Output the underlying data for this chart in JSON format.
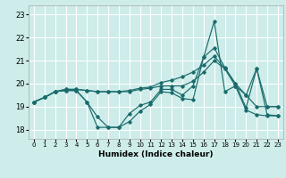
{
  "xlabel": "Humidex (Indice chaleur)",
  "xlim": [
    -0.5,
    23.5
  ],
  "ylim": [
    17.6,
    23.4
  ],
  "yticks": [
    18,
    19,
    20,
    21,
    22,
    23
  ],
  "xticks": [
    0,
    1,
    2,
    3,
    4,
    5,
    6,
    7,
    8,
    9,
    10,
    11,
    12,
    13,
    14,
    15,
    16,
    17,
    18,
    19,
    20,
    21,
    22,
    23
  ],
  "bg_color": "#cdecea",
  "grid_color": "#ffffff",
  "line_color": "#1a6b6b",
  "lines": [
    {
      "x": [
        0,
        1,
        2,
        3,
        4,
        5,
        6,
        7,
        8,
        9,
        10,
        11,
        12,
        13,
        14,
        15,
        16,
        17,
        18,
        19,
        20,
        21,
        22,
        23
      ],
      "y": [
        19.2,
        19.4,
        19.65,
        19.7,
        19.7,
        19.2,
        18.1,
        18.1,
        18.1,
        18.35,
        18.8,
        19.1,
        19.65,
        19.6,
        19.35,
        19.3,
        21.15,
        22.7,
        19.65,
        19.9,
        18.85,
        18.65,
        18.6,
        18.6
      ]
    },
    {
      "x": [
        0,
        1,
        2,
        3,
        4,
        5,
        6,
        7,
        8,
        9,
        10,
        11,
        12,
        13,
        14,
        15,
        16,
        17,
        18,
        19,
        20,
        21,
        22,
        23
      ],
      "y": [
        19.2,
        19.4,
        19.65,
        19.7,
        19.7,
        19.2,
        18.55,
        18.1,
        18.1,
        18.7,
        19.05,
        19.2,
        19.75,
        19.75,
        19.5,
        19.9,
        21.15,
        21.55,
        20.7,
        20.0,
        18.95,
        20.65,
        18.65,
        18.6
      ]
    },
    {
      "x": [
        0,
        1,
        2,
        3,
        4,
        5,
        6,
        7,
        8,
        9,
        10,
        11,
        12,
        13,
        14,
        15,
        16,
        17,
        18,
        19,
        20,
        21,
        22,
        23
      ],
      "y": [
        19.2,
        19.4,
        19.65,
        19.75,
        19.75,
        19.7,
        19.65,
        19.65,
        19.65,
        19.65,
        19.75,
        19.8,
        19.9,
        19.9,
        19.9,
        20.1,
        20.5,
        21.0,
        20.65,
        19.9,
        19.5,
        20.65,
        19.0,
        19.0
      ]
    },
    {
      "x": [
        0,
        1,
        2,
        3,
        4,
        5,
        6,
        7,
        8,
        9,
        10,
        11,
        12,
        13,
        14,
        15,
        16,
        17,
        18,
        19,
        20,
        21,
        22,
        23
      ],
      "y": [
        19.2,
        19.4,
        19.65,
        19.75,
        19.75,
        19.7,
        19.65,
        19.65,
        19.65,
        19.7,
        19.8,
        19.85,
        20.05,
        20.15,
        20.3,
        20.5,
        20.8,
        21.2,
        20.65,
        20.0,
        19.5,
        19.0,
        19.0,
        19.0
      ]
    }
  ]
}
